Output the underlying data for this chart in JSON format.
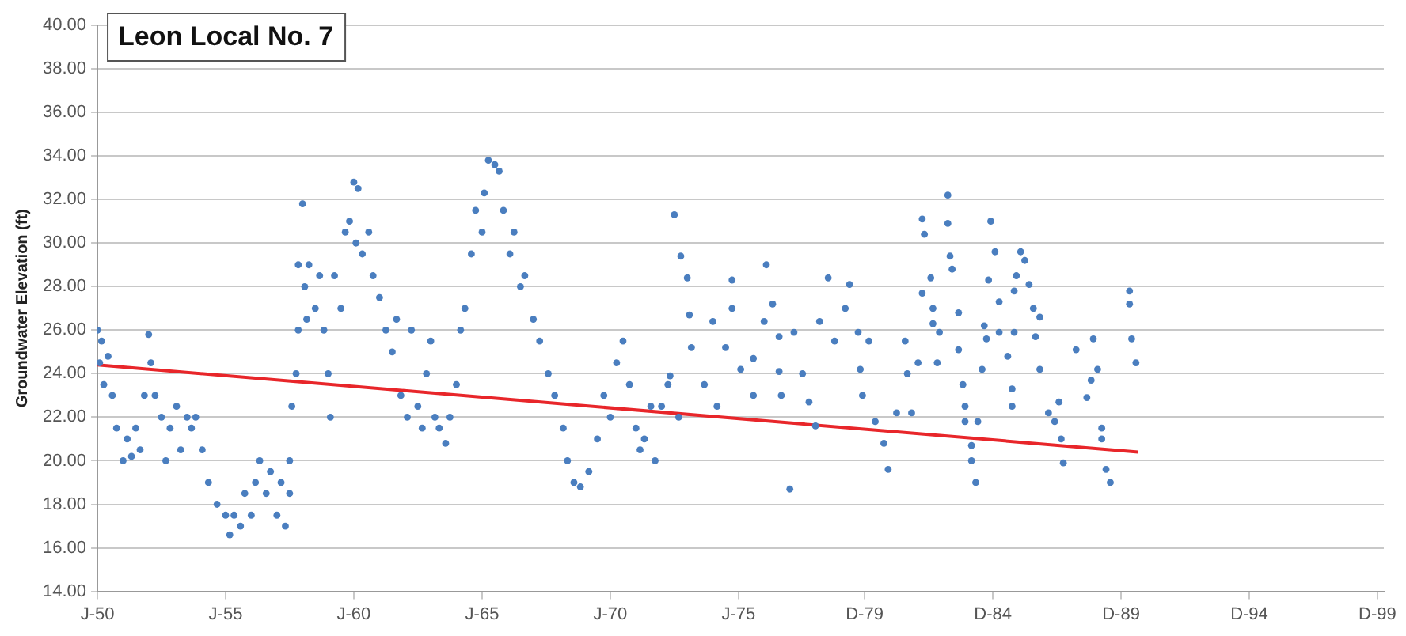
{
  "chart_data": {
    "type": "scatter",
    "title": "Leon Local No. 7",
    "ylabel": "Groundwater Elevation (ft)",
    "xlim": [
      "1950-01",
      "2000-03"
    ],
    "xticks": [
      {
        "value": "1950-01",
        "label": "J-50"
      },
      {
        "value": "1955-01",
        "label": "J-55"
      },
      {
        "value": "1960-01",
        "label": "J-60"
      },
      {
        "value": "1965-01",
        "label": "J-65"
      },
      {
        "value": "1970-01",
        "label": "J-70"
      },
      {
        "value": "1975-01",
        "label": "J-75"
      },
      {
        "value": "1979-12",
        "label": "D-79"
      },
      {
        "value": "1984-12",
        "label": "D-84"
      },
      {
        "value": "1989-12",
        "label": "D-89"
      },
      {
        "value": "1994-12",
        "label": "D-94"
      },
      {
        "value": "1999-12",
        "label": "D-99"
      }
    ],
    "ylim": [
      14,
      40
    ],
    "yticks": [
      {
        "value": 14,
        "label": "14.00"
      },
      {
        "value": 16,
        "label": "16.00"
      },
      {
        "value": 18,
        "label": "18.00"
      },
      {
        "value": 20,
        "label": "20.00"
      },
      {
        "value": 22,
        "label": "22.00"
      },
      {
        "value": 24,
        "label": "24.00"
      },
      {
        "value": 26,
        "label": "26.00"
      },
      {
        "value": 28,
        "label": "28.00"
      },
      {
        "value": 30,
        "label": "30.00"
      },
      {
        "value": 32,
        "label": "32.00"
      },
      {
        "value": 34,
        "label": "34.00"
      },
      {
        "value": 36,
        "label": "36.00"
      },
      {
        "value": 38,
        "label": "38.00"
      },
      {
        "value": 40,
        "label": "40.00"
      }
    ],
    "grid": "y",
    "legend": false,
    "marker": "circle",
    "series": [
      {
        "type": "scatter",
        "color": "#4a7ebf",
        "x": [
          "1950-01",
          "1950-02",
          "1950-03",
          "1950-04",
          "1950-06",
          "1950-08",
          "1950-10",
          "1951-01",
          "1951-03",
          "1951-05",
          "1951-07",
          "1951-09",
          "1951-11",
          "1952-01",
          "1952-02",
          "1952-04",
          "1952-07",
          "1952-09",
          "1952-11",
          "1953-02",
          "1953-04",
          "1953-07",
          "1953-09",
          "1953-11",
          "1954-02",
          "1954-05",
          "1954-09",
          "1955-01",
          "1955-03",
          "1955-05",
          "1955-08",
          "1955-10",
          "1956-01",
          "1956-03",
          "1956-05",
          "1956-08",
          "1956-10",
          "1957-01",
          "1957-03",
          "1957-05",
          "1957-07",
          "1957-07",
          "1957-08",
          "1957-10",
          "1957-11",
          "1957-11",
          "1958-01",
          "1958-02",
          "1958-03",
          "1958-04",
          "1958-07",
          "1958-09",
          "1958-11",
          "1959-01",
          "1959-02",
          "1959-04",
          "1959-07",
          "1959-09",
          "1959-11",
          "1960-01",
          "1960-02",
          "1960-03",
          "1960-05",
          "1960-08",
          "1960-10",
          "1961-01",
          "1961-04",
          "1961-07",
          "1961-09",
          "1961-11",
          "1962-02",
          "1962-04",
          "1962-07",
          "1962-09",
          "1962-11",
          "1963-01",
          "1963-03",
          "1963-05",
          "1963-08",
          "1963-10",
          "1964-01",
          "1964-03",
          "1964-05",
          "1964-08",
          "1964-10",
          "1965-01",
          "1965-02",
          "1965-04",
          "1965-07",
          "1965-09",
          "1965-11",
          "1966-02",
          "1966-04",
          "1966-07",
          "1966-09",
          "1967-01",
          "1967-04",
          "1967-08",
          "1967-11",
          "1968-03",
          "1968-05",
          "1968-08",
          "1968-11",
          "1969-03",
          "1969-07",
          "1969-10",
          "1970-01",
          "1970-04",
          "1970-07",
          "1970-10",
          "1971-01",
          "1971-03",
          "1971-05",
          "1971-08",
          "1971-10",
          "1972-01",
          "1972-04",
          "1972-05",
          "1972-07",
          "1972-09",
          "1972-10",
          "1973-01",
          "1973-02",
          "1973-03",
          "1973-09",
          "1974-01",
          "1974-03",
          "1974-07",
          "1974-10",
          "1974-10",
          "1975-02",
          "1975-08",
          "1975-08",
          "1976-01",
          "1976-02",
          "1976-05",
          "1976-08",
          "1976-08",
          "1976-09",
          "1977-01",
          "1977-03",
          "1977-07",
          "1977-10",
          "1978-01",
          "1978-03",
          "1978-07",
          "1978-10",
          "1979-03",
          "1979-05",
          "1979-09",
          "1979-10",
          "1979-11",
          "1980-02",
          "1980-05",
          "1980-09",
          "1980-11",
          "1981-03",
          "1981-07",
          "1981-08",
          "1981-10",
          "1982-01",
          "1982-03",
          "1982-03",
          "1982-04",
          "1982-07",
          "1982-08",
          "1982-08",
          "1982-10",
          "1982-11",
          "1983-03",
          "1983-03",
          "1983-04",
          "1983-05",
          "1983-08",
          "1983-08",
          "1983-10",
          "1983-11",
          "1983-11",
          "1984-02",
          "1984-02",
          "1984-04",
          "1984-05",
          "1984-07",
          "1984-08",
          "1984-09",
          "1984-10",
          "1984-11",
          "1985-01",
          "1985-03",
          "1985-03",
          "1985-07",
          "1985-09",
          "1985-09",
          "1985-10",
          "1985-10",
          "1985-11",
          "1986-01",
          "1986-03",
          "1986-05",
          "1986-07",
          "1986-08",
          "1986-10",
          "1986-10",
          "1987-02",
          "1987-05",
          "1987-07",
          "1987-08",
          "1987-09",
          "1988-03",
          "1988-08",
          "1988-10",
          "1988-11",
          "1989-01",
          "1989-03",
          "1989-03",
          "1989-05",
          "1989-07",
          "1990-04",
          "1990-04",
          "1990-05",
          "1990-07"
        ],
        "values": [
          26.0,
          24.5,
          25.5,
          23.5,
          24.8,
          23.0,
          21.5,
          20.0,
          21.0,
          20.2,
          21.5,
          20.5,
          23.0,
          25.8,
          24.5,
          23.0,
          22.0,
          20.0,
          21.5,
          22.5,
          20.5,
          22.0,
          21.5,
          22.0,
          20.5,
          19.0,
          18.0,
          17.5,
          16.6,
          17.5,
          17.0,
          18.5,
          17.5,
          19.0,
          20.0,
          18.5,
          19.5,
          17.5,
          19.0,
          17.0,
          18.5,
          20.0,
          22.5,
          24.0,
          26.0,
          29.0,
          31.8,
          28.0,
          26.5,
          29.0,
          27.0,
          28.5,
          26.0,
          24.0,
          22.0,
          28.5,
          27.0,
          30.5,
          31.0,
          32.8,
          30.0,
          32.5,
          29.5,
          30.5,
          28.5,
          27.5,
          26.0,
          25.0,
          26.5,
          23.0,
          22.0,
          26.0,
          22.5,
          21.5,
          24.0,
          25.5,
          22.0,
          21.5,
          20.8,
          22.0,
          23.5,
          26.0,
          27.0,
          29.5,
          31.5,
          30.5,
          32.3,
          33.8,
          33.6,
          33.3,
          31.5,
          29.5,
          30.5,
          28.0,
          28.5,
          26.5,
          25.5,
          24.0,
          23.0,
          21.5,
          20.0,
          19.0,
          18.8,
          19.5,
          21.0,
          23.0,
          22.0,
          24.5,
          25.5,
          23.5,
          21.5,
          20.5,
          21.0,
          22.5,
          20.0,
          22.5,
          23.5,
          23.9,
          31.3,
          22.0,
          29.4,
          28.4,
          26.7,
          25.2,
          23.5,
          26.4,
          22.5,
          25.2,
          28.3,
          27.0,
          24.2,
          23.0,
          24.7,
          26.4,
          29.0,
          27.2,
          25.7,
          24.1,
          23.0,
          18.7,
          25.9,
          24.0,
          22.7,
          21.6,
          26.4,
          28.4,
          25.5,
          27.0,
          28.1,
          25.9,
          24.2,
          23.0,
          25.5,
          21.8,
          20.8,
          19.6,
          22.2,
          25.5,
          24.0,
          22.2,
          24.5,
          31.1,
          27.7,
          30.4,
          28.4,
          27.0,
          26.3,
          24.5,
          25.9,
          32.2,
          30.9,
          29.4,
          28.8,
          26.8,
          25.1,
          23.5,
          22.5,
          21.8,
          20.7,
          20.0,
          19.0,
          21.8,
          24.2,
          26.2,
          25.6,
          28.3,
          31.0,
          29.6,
          27.3,
          25.9,
          24.8,
          23.3,
          22.5,
          25.9,
          27.8,
          28.5,
          29.6,
          29.2,
          28.1,
          27.0,
          25.7,
          26.6,
          24.2,
          22.2,
          21.8,
          22.7,
          21.0,
          19.9,
          25.1,
          22.9,
          23.7,
          25.6,
          24.2,
          21.5,
          21.0,
          19.6,
          19.0,
          27.8,
          27.2,
          25.6,
          24.5
        ]
      },
      {
        "type": "line",
        "color": "#e8262a",
        "marker": "none",
        "x": [
          "1950-01",
          "1990-08"
        ],
        "values": [
          24.4,
          20.4
        ]
      }
    ]
  }
}
